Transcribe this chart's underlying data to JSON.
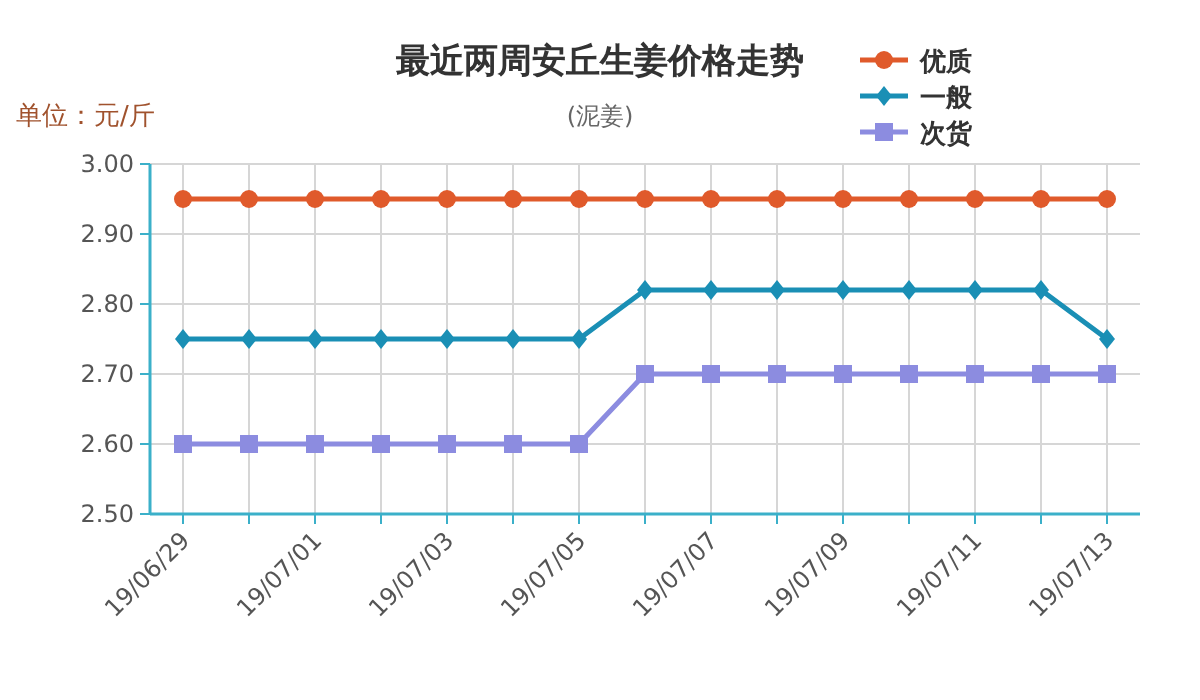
{
  "chart_data": {
    "type": "line",
    "title": "最近两周安丘生姜价格走势",
    "subtitle": "(泥姜)",
    "annotations": [
      "单位：元/斤"
    ],
    "categories": [
      "19/06/29",
      null,
      "19/07/01",
      null,
      "19/07/03",
      null,
      "19/07/05",
      null,
      "19/07/07",
      null,
      "19/07/09",
      null,
      "19/07/11",
      null,
      "19/07/13"
    ],
    "series": [
      {
        "name": "优质",
        "color": "#e05a2b",
        "marker": "circle",
        "values": [
          2.95,
          2.95,
          2.95,
          2.95,
          2.95,
          2.95,
          2.95,
          2.95,
          2.95,
          2.95,
          2.95,
          2.95,
          2.95,
          2.95,
          2.95
        ]
      },
      {
        "name": "一般",
        "color": "#1a8fb5",
        "marker": "diamond",
        "values": [
          2.75,
          2.75,
          2.75,
          2.75,
          2.75,
          2.75,
          2.75,
          2.82,
          2.82,
          2.82,
          2.82,
          2.82,
          2.82,
          2.82,
          2.75
        ]
      },
      {
        "name": "次货",
        "color": "#8c8ce0",
        "marker": "square",
        "values": [
          2.6,
          2.6,
          2.6,
          2.6,
          2.6,
          2.6,
          2.6,
          2.7,
          2.7,
          2.7,
          2.7,
          2.7,
          2.7,
          2.7,
          2.7
        ]
      }
    ],
    "ylim": [
      2.5,
      3.0
    ],
    "yticks": [
      {
        "value": 2.5,
        "label": "2.50"
      },
      {
        "value": 2.6,
        "label": "2.60"
      },
      {
        "value": 2.7,
        "label": "2.70"
      },
      {
        "value": 2.8,
        "label": "2.80"
      },
      {
        "value": 2.9,
        "label": "2.90"
      },
      {
        "value": 3.0,
        "label": "3.00"
      }
    ],
    "grid": true,
    "legend": "top right"
  }
}
